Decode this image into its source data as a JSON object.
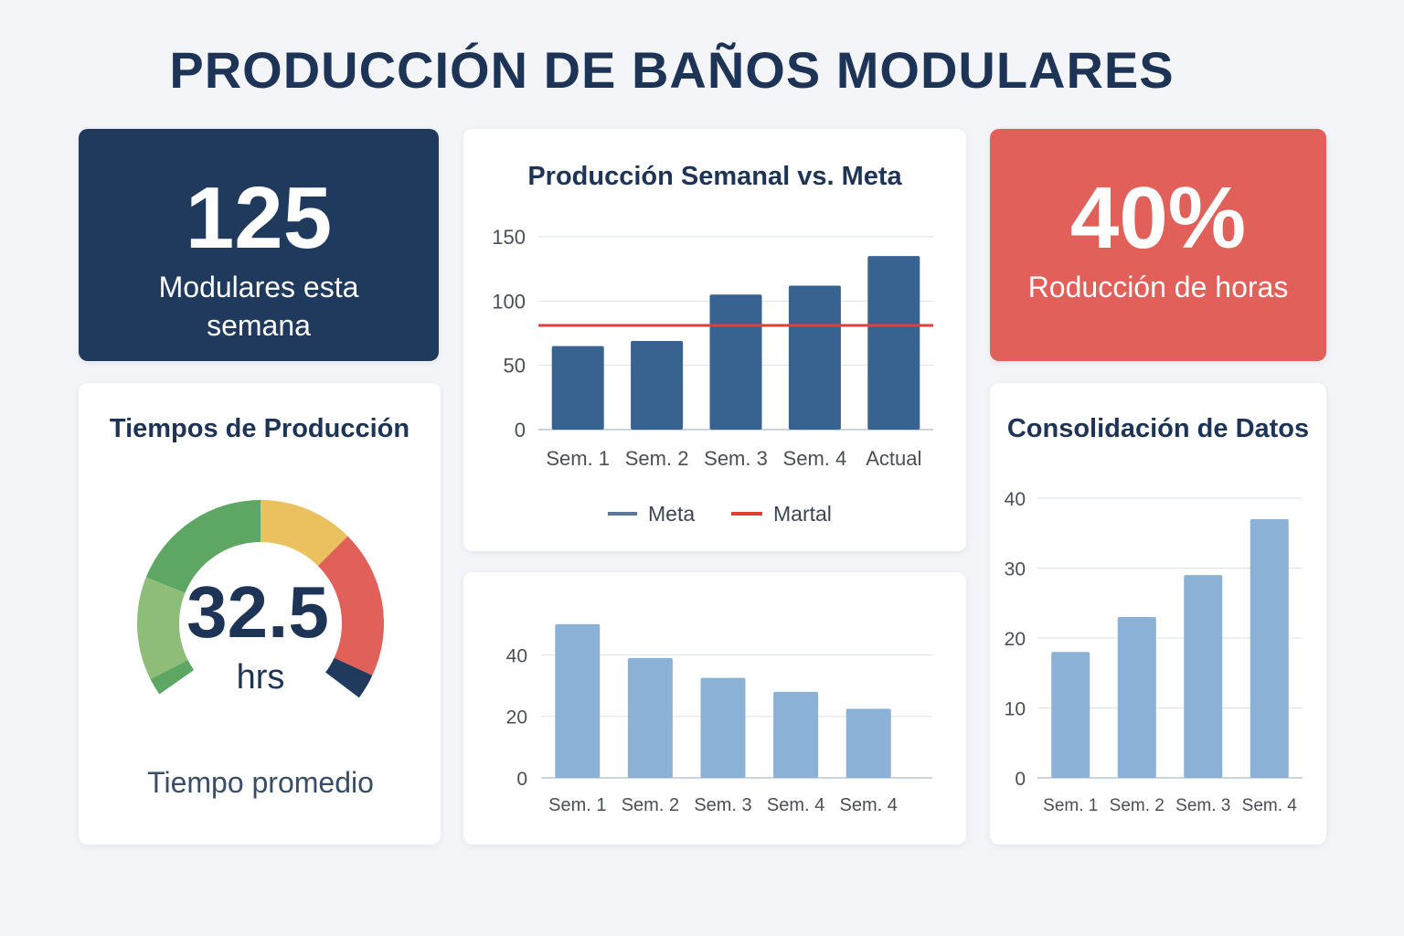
{
  "title": "PRODUCCIÓN DE BAÑOS MODULARES",
  "kpi_units": {
    "value": "125",
    "label_line1": "Modulares esta",
    "label_line2": "semana"
  },
  "kpi_hours": {
    "value": "40%",
    "label": "Roducción de horas"
  },
  "gauge": {
    "title": "Tiempos de Producción",
    "value": "32.5",
    "unit": "hrs",
    "caption": "Tiempo promedio",
    "colors": {
      "light_green": "#8dbd78",
      "green": "#5ea663",
      "yellow": "#ebc05e",
      "red": "#e2605a",
      "navy": "#1f3a5c"
    }
  },
  "colors": {
    "bar_dark": "#386290",
    "bar_light": "#8cb1d6",
    "goal_line": "#e0403a",
    "grid": "#dde3ea",
    "axis_text": "#4a4f57"
  },
  "chart_data": [
    {
      "id": "weekly",
      "type": "bar",
      "title": "Producción Semanal vs. Meta",
      "categories": [
        "Sem. 1",
        "Sem. 2",
        "Sem. 3",
        "Sem. 4",
        "Actual"
      ],
      "series": [
        {
          "name": "Meta",
          "values": [
            65,
            69,
            105,
            112,
            135
          ]
        },
        {
          "name": "Martal",
          "type": "line",
          "values": [
            81,
            81,
            81,
            81,
            81
          ]
        }
      ],
      "yticks": [
        0,
        50,
        100,
        150
      ],
      "ylim": [
        0,
        150
      ],
      "grid": true,
      "legend": "bottom"
    },
    {
      "id": "hours",
      "type": "bar",
      "title": "",
      "categories": [
        "Sem. 1",
        "Sem. 2",
        "Sem. 3",
        "Sem. 4",
        "Sem. 4"
      ],
      "values": [
        50,
        39,
        32.5,
        28,
        22.5
      ],
      "yticks": [
        0,
        20,
        40
      ],
      "ylim": [
        0,
        55
      ],
      "grid": true
    },
    {
      "id": "consolidation",
      "type": "bar",
      "title": "Consolidación de Datos",
      "categories": [
        "Sem. 1",
        "Sem. 2",
        "Sem. 3",
        "Sem. 4"
      ],
      "values": [
        18,
        23,
        29,
        37
      ],
      "yticks": [
        0,
        10,
        20,
        30,
        40
      ],
      "ylim": [
        0,
        40
      ],
      "grid": true
    }
  ]
}
